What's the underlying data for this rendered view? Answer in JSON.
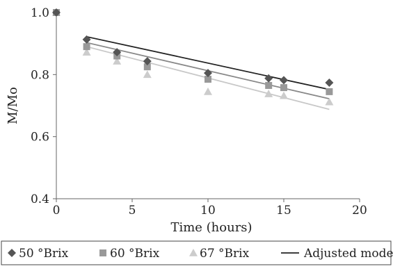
{
  "chart_data": {
    "type": "scatter",
    "title": "",
    "xlabel": "Time (hours)",
    "ylabel": "M/Mo",
    "xlim": [
      0,
      20
    ],
    "ylim": [
      0.4,
      1.0
    ],
    "xticks": [
      0,
      5,
      10,
      15,
      20
    ],
    "yticks": [
      0.4,
      0.6,
      0.8,
      1.0
    ],
    "xtick_labels": [
      "0",
      "5",
      "10",
      "15",
      "20"
    ],
    "ytick_labels": [
      "0.4",
      "0.6",
      "0.8",
      "1.0"
    ],
    "grid": false,
    "legend_position": "bottom",
    "series": [
      {
        "name": "50 °Brix",
        "marker": "diamond",
        "color": "#555555",
        "points": [
          [
            0,
            1.0
          ],
          [
            2,
            0.913
          ],
          [
            4,
            0.872
          ],
          [
            6,
            0.843
          ],
          [
            10,
            0.805
          ],
          [
            14,
            0.788
          ],
          [
            15,
            0.782
          ],
          [
            18,
            0.774
          ]
        ]
      },
      {
        "name": "60 °Brix",
        "marker": "square",
        "color": "#999999",
        "points": [
          [
            0,
            1.0
          ],
          [
            2,
            0.89
          ],
          [
            4,
            0.86
          ],
          [
            6,
            0.825
          ],
          [
            10,
            0.785
          ],
          [
            14,
            0.765
          ],
          [
            15,
            0.758
          ],
          [
            18,
            0.745
          ]
        ]
      },
      {
        "name": "67 °Brix",
        "marker": "triangle",
        "color": "#cccccc",
        "points": [
          [
            0,
            1.0
          ],
          [
            2,
            0.872
          ],
          [
            4,
            0.843
          ],
          [
            6,
            0.8
          ],
          [
            10,
            0.745
          ],
          [
            14,
            0.738
          ],
          [
            15,
            0.732
          ],
          [
            18,
            0.712
          ]
        ]
      }
    ],
    "adjusted_model": {
      "name": "Adjusted model",
      "lines": [
        {
          "color": "#222222",
          "x": [
            2,
            18
          ],
          "y": [
            0.922,
            0.752
          ]
        },
        {
          "color": "#888888",
          "x": [
            2,
            18
          ],
          "y": [
            0.903,
            0.722
          ]
        },
        {
          "color": "#c8c8c8",
          "x": [
            2,
            18
          ],
          "y": [
            0.89,
            0.688
          ]
        }
      ]
    }
  }
}
